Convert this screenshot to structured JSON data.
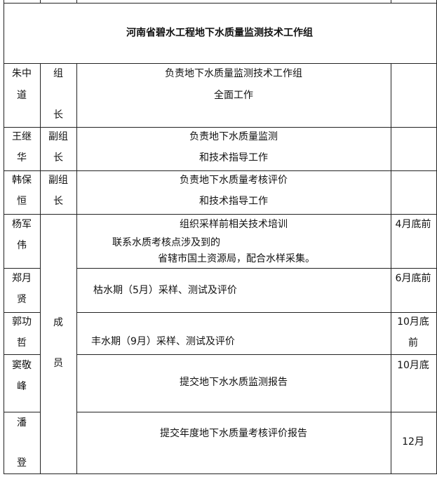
{
  "title": "河南省碧水工程地下水质量监测技术工作组",
  "rows": [
    {
      "name": [
        "朱中",
        "道"
      ],
      "role": [
        "组",
        "长"
      ],
      "duty": [
        "负责地下水质量监测技术工作组",
        "全面工作"
      ],
      "deadline": []
    },
    {
      "name": [
        "王继",
        "华"
      ],
      "role": [
        "副组",
        "长"
      ],
      "duty": [
        "负责地下水质量监测",
        "和技术指导工作"
      ],
      "deadline": []
    },
    {
      "name": [
        "韩保",
        "恒"
      ],
      "role": [
        "副组",
        "长"
      ],
      "duty": [
        "负责地下水质量考核评价",
        "和技术指导工作"
      ],
      "deadline": []
    },
    {
      "name": [
        "杨军",
        "伟"
      ],
      "duty": [
        "组织采样前相关技术培训",
        "联系水质考核点涉及到的",
        "省辖市国土资源局，配合水样采集。"
      ],
      "deadline": [
        "4月底前"
      ]
    },
    {
      "name": [
        "郑月",
        "贤"
      ],
      "duty": [
        "枯水期（5月）采样、测试及评价"
      ],
      "deadline": [
        "6月底前"
      ]
    },
    {
      "name": [
        "郭功",
        "哲"
      ],
      "duty": [
        "丰水期（9月）采样、测试及评价"
      ],
      "deadline": [
        "10月底",
        "前"
      ]
    },
    {
      "name": [
        "窦敬",
        "峰"
      ],
      "duty": [
        "提交地下水水质监测报告"
      ],
      "deadline": [
        "10月底"
      ]
    },
    {
      "name": [
        "潘",
        "登"
      ],
      "duty": [
        "提交年度地下水质量考核评价报告"
      ],
      "deadline": [
        "12月"
      ]
    }
  ],
  "members_role": [
    "成",
    "员"
  ]
}
